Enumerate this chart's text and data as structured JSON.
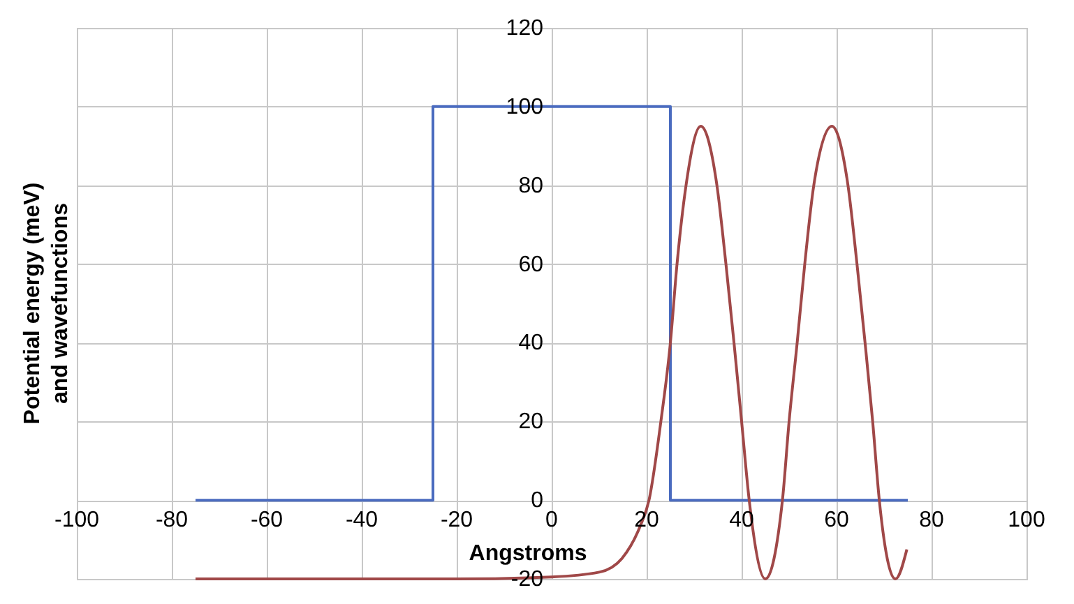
{
  "chart_data": {
    "type": "line",
    "xlabel": "Angstroms",
    "ylabel": "Potential energy (meV) and wavefunctions",
    "xlim": [
      -100,
      100
    ],
    "ylim": [
      -20,
      120
    ],
    "xticks": [
      -100,
      -80,
      -60,
      -40,
      -20,
      0,
      20,
      40,
      60,
      80,
      100
    ],
    "yticks": [
      -20,
      0,
      20,
      40,
      60,
      80,
      100,
      120
    ],
    "grid": true,
    "line_style": "solid",
    "marker": "none",
    "series": [
      {
        "color": "#4a6bbf",
        "x": [
          -75,
          -25,
          -25,
          25,
          25,
          75
        ],
        "values": [
          0,
          0,
          100,
          100,
          0,
          0
        ]
      },
      {
        "color": "#a04848",
        "x": [
          -75,
          -40,
          -20,
          0,
          10,
          14.8,
          18.6,
          20.5,
          23,
          25,
          26.4,
          28.3,
          31.4,
          34.8,
          36.7,
          38.4,
          40,
          41.6,
          45,
          48.6,
          50,
          51.7,
          53.3,
          55.2,
          59,
          62.4,
          64.3,
          66,
          67.6,
          69,
          72.4,
          74.8
        ],
        "values": [
          -20,
          -20,
          -20,
          -19.5,
          -18.3,
          -14.8,
          -6.7,
          0,
          20,
          40,
          60,
          80,
          95,
          80,
          60,
          40,
          20,
          0,
          -20,
          0,
          20,
          40,
          60,
          80,
          95,
          80,
          60,
          40,
          20,
          0,
          -20,
          -12.5
        ]
      }
    ]
  }
}
